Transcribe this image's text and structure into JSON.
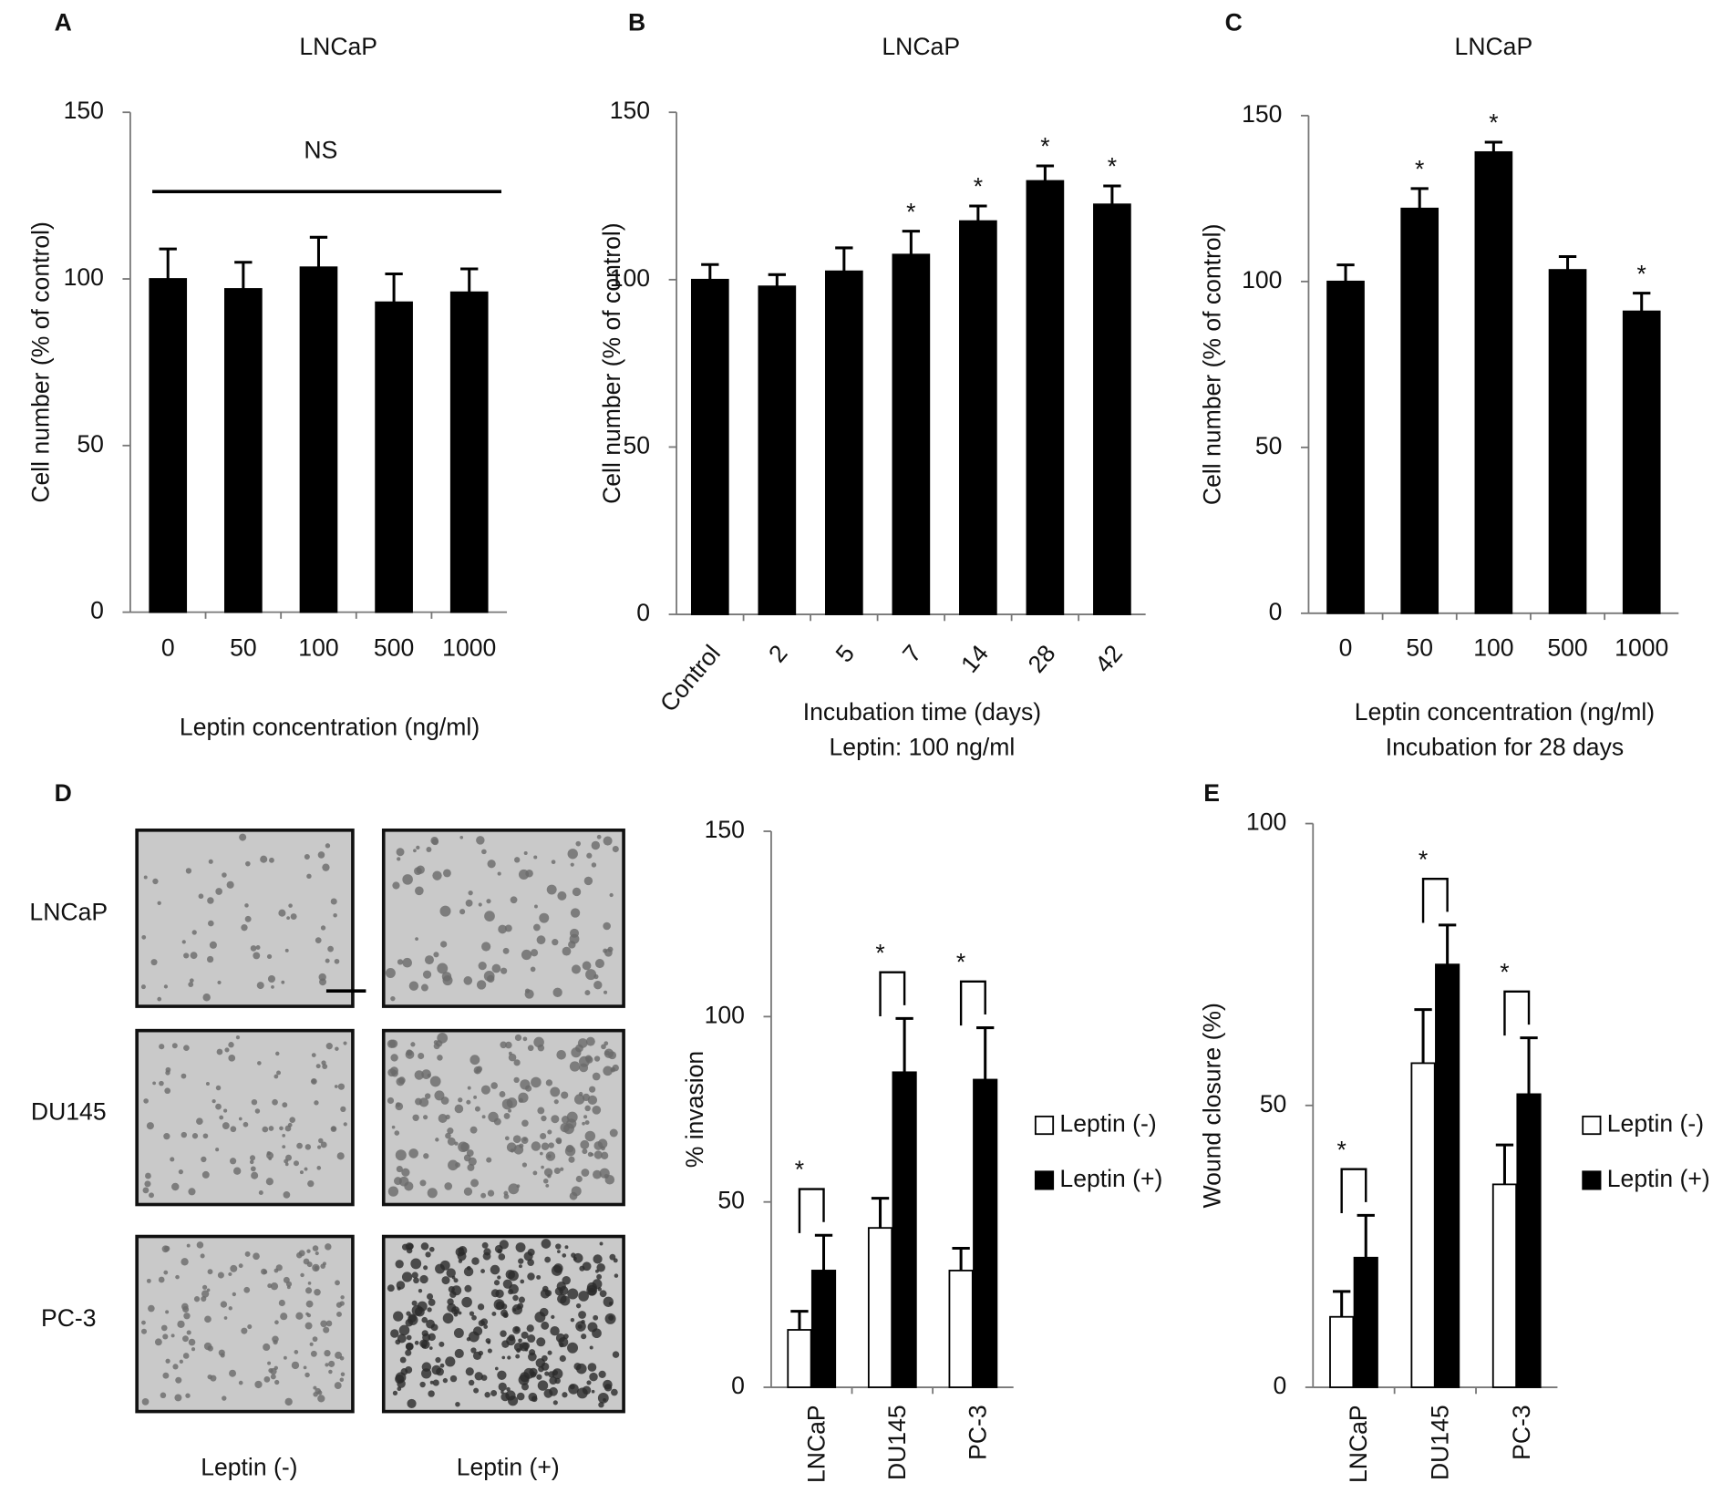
{
  "chart_data": [
    {
      "type": "bar",
      "panel": "A",
      "title": "LNCaP",
      "categories": [
        "0",
        "50",
        "100",
        "500",
        "1000"
      ],
      "values": [
        100,
        97,
        103.5,
        93,
        96
      ],
      "errors": [
        9,
        8,
        9,
        8.5,
        7
      ],
      "color": "#000000",
      "ylim": [
        0,
        150
      ],
      "yticks": [
        0,
        50,
        100,
        150
      ],
      "ylabel": "Cell number (% of control)",
      "xlabel": [
        "Leptin concentration (ng/ml)"
      ],
      "annotation": "NS"
    },
    {
      "type": "bar",
      "panel": "B",
      "title": "LNCaP",
      "categories": [
        "Control",
        "2",
        "5",
        "7",
        "14",
        "28",
        "42"
      ],
      "values": [
        100,
        98,
        102.5,
        107.5,
        117.5,
        129.5,
        122.5
      ],
      "errors": [
        4.5,
        3.5,
        7,
        7,
        4.5,
        4.5,
        5.5
      ],
      "color": "#000000",
      "markers": [
        null,
        null,
        null,
        "*",
        "*",
        "*",
        "*"
      ],
      "ylim": [
        0,
        150
      ],
      "yticks": [
        0,
        50,
        100,
        150
      ],
      "ylabel": "Cell number (% of control)",
      "xlabel": [
        "Incubation time (days)",
        "Leptin: 100 ng/ml"
      ],
      "xtick_rotation": -50
    },
    {
      "type": "bar",
      "panel": "C",
      "title": "LNCaP",
      "categories": [
        "0",
        "50",
        "100",
        "500",
        "1000"
      ],
      "values": [
        100,
        122,
        139,
        103.5,
        91
      ],
      "errors": [
        5,
        6,
        3,
        4,
        5.5
      ],
      "color": "#000000",
      "markers": [
        null,
        "*",
        "*",
        null,
        "*"
      ],
      "ylim": [
        0,
        150
      ],
      "yticks": [
        0,
        50,
        100,
        150
      ],
      "ylabel": "Cell number (% of control)",
      "xlabel": [
        "Leptin concentration (ng/ml)",
        "Incubation for 28 days"
      ]
    },
    {
      "type": "grouped_bar",
      "categories": [
        "LNCaP",
        "DU145",
        "PC-3"
      ],
      "series": [
        {
          "name": "Leptin (-)",
          "color": "#ffffff",
          "values": [
            15.5,
            43,
            31.5
          ],
          "errors": [
            5,
            8,
            6
          ]
        },
        {
          "name": "Leptin (+)",
          "color": "#000000",
          "values": [
            31.5,
            85,
            83
          ],
          "errors": [
            9.5,
            14.5,
            14
          ]
        }
      ],
      "markers": [
        "*",
        "*",
        "*"
      ],
      "ylim": [
        0,
        150
      ],
      "yticks": [
        0,
        50,
        100,
        150
      ],
      "ylabel": "% invasion",
      "xtick_rotation": -90
    },
    {
      "type": "grouped_bar",
      "panel": "E",
      "categories": [
        "LNCaP",
        "DU145",
        "PC-3"
      ],
      "series": [
        {
          "name": "Leptin (-)",
          "color": "#ffffff",
          "values": [
            12.5,
            57.5,
            36
          ],
          "errors": [
            4.5,
            9.5,
            7
          ]
        },
        {
          "name": "Leptin (+)",
          "color": "#000000",
          "values": [
            23,
            75,
            52
          ],
          "errors": [
            7.5,
            7,
            10
          ]
        }
      ],
      "markers": [
        "*",
        "*",
        "*"
      ],
      "ylim": [
        0,
        100
      ],
      "yticks": [
        0,
        50,
        100
      ],
      "ylabel": "Wound closure (%)",
      "xtick_rotation": -90
    }
  ],
  "image_panel": {
    "panel": "D",
    "rows": [
      "LNCaP",
      "DU145",
      "PC-3"
    ],
    "columns": [
      "Leptin (-)",
      "Leptin (+)"
    ]
  }
}
